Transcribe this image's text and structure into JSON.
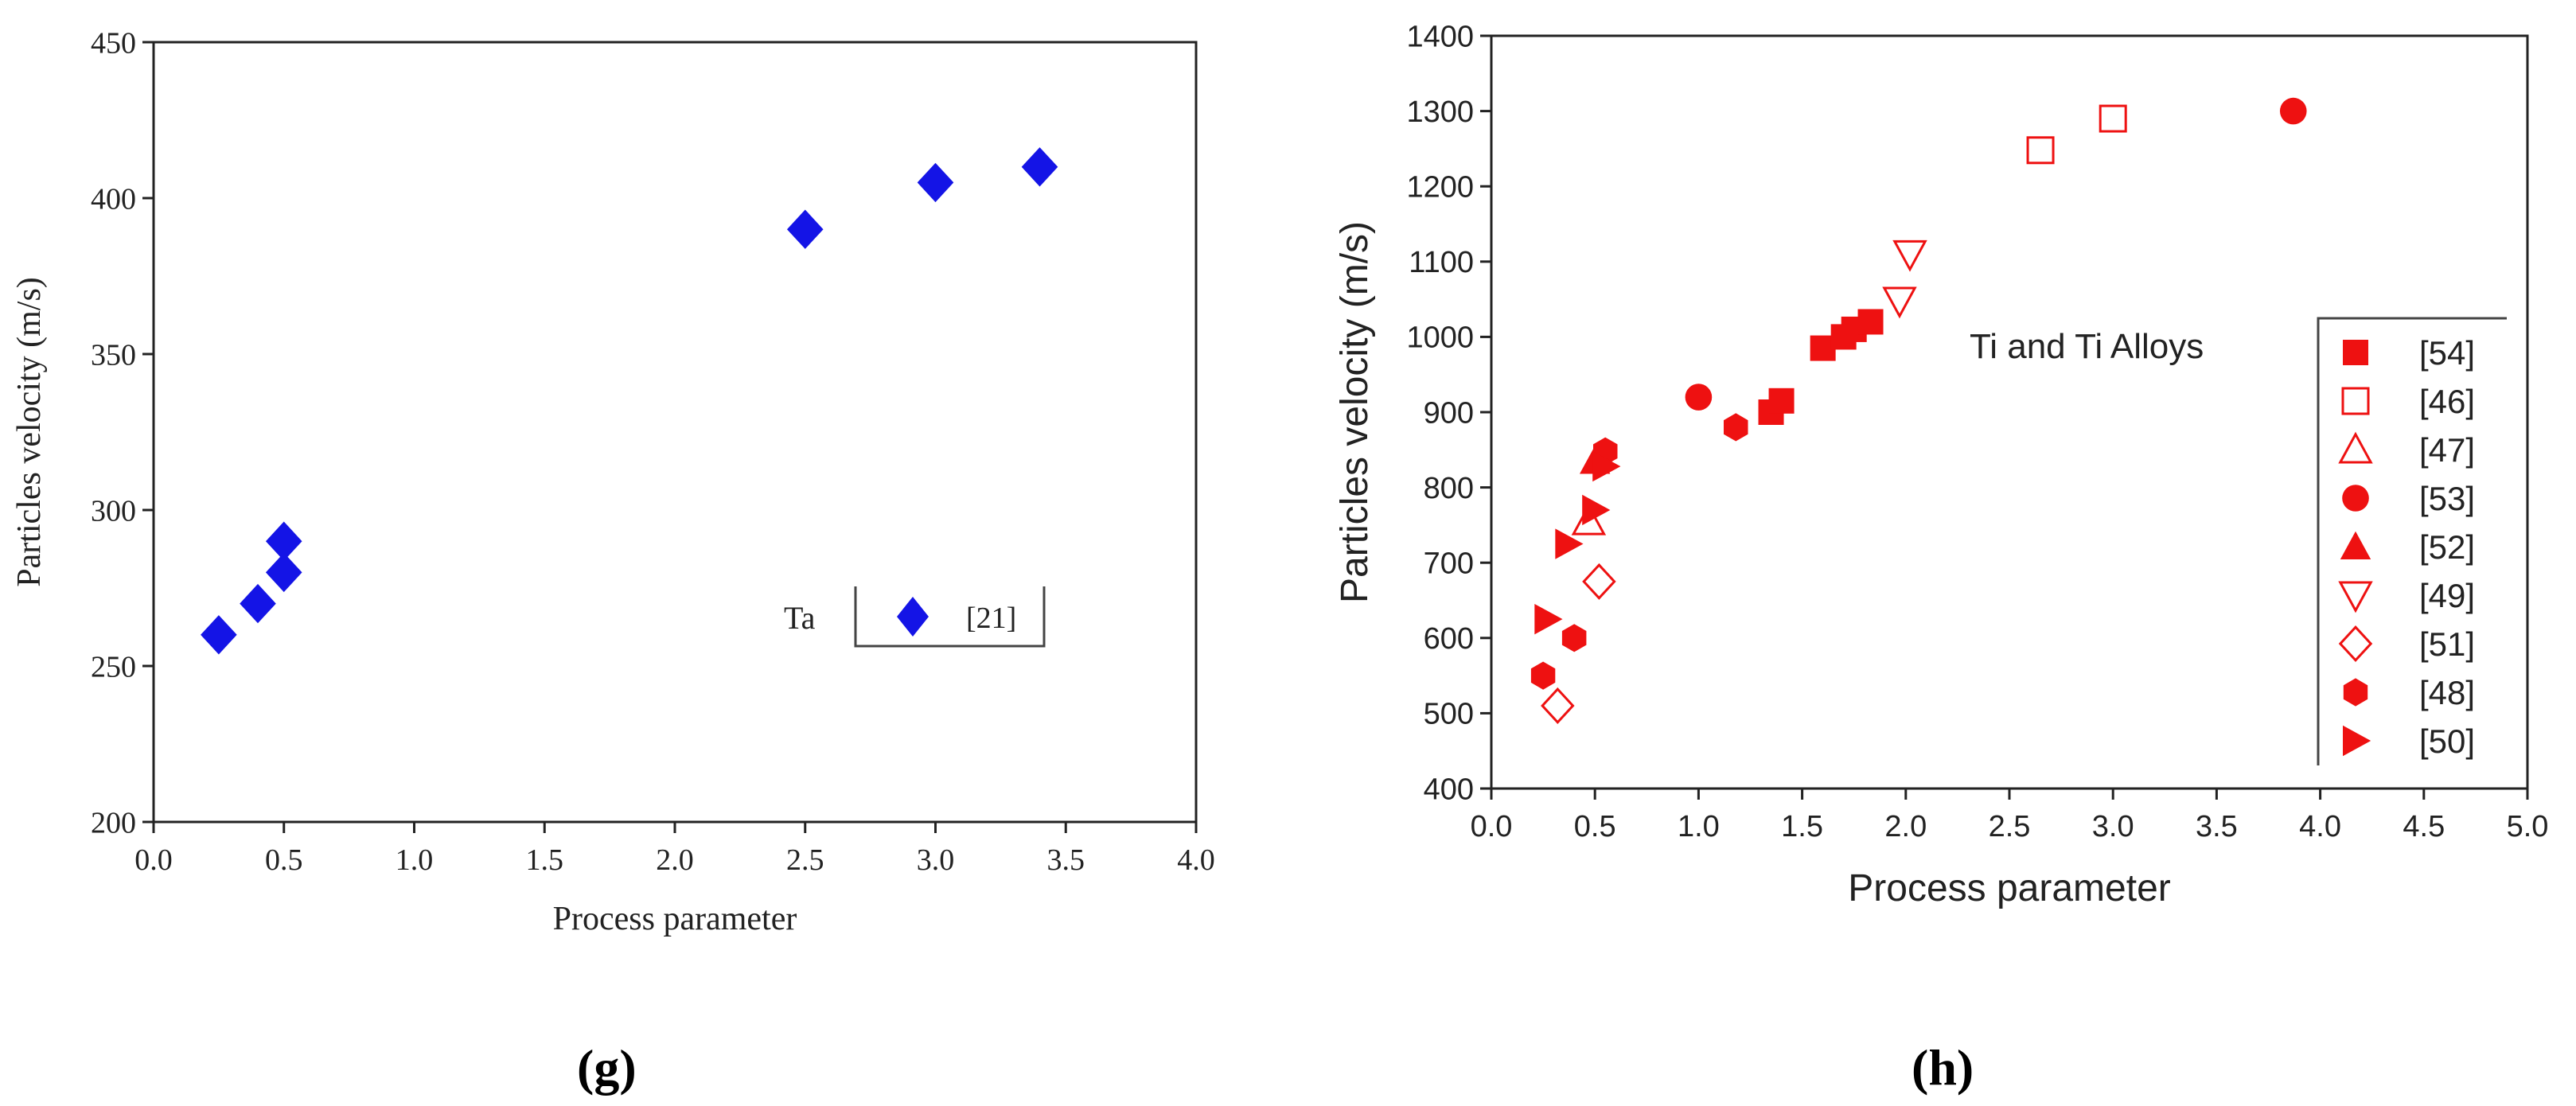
{
  "chart_data": [
    {
      "type": "scatter",
      "panel": "g",
      "title": "",
      "xlabel": "Process parameter",
      "ylabel": "Particles velocity (m/s)",
      "xlim": [
        0.0,
        4.0
      ],
      "ylim": [
        200,
        450
      ],
      "xticks": [
        "0.0",
        "0.5",
        "1.0",
        "1.5",
        "2.0",
        "2.5",
        "3.0",
        "3.5",
        "4.0"
      ],
      "yticks": [
        "200",
        "250",
        "300",
        "350",
        "400",
        "450"
      ],
      "legend_title": "Ta",
      "legend_position": "center-right",
      "series": [
        {
          "name": "[21]",
          "marker": "diamond",
          "color": "#1414e6",
          "filled": true,
          "x": [
            0.25,
            0.4,
            0.5,
            0.5,
            2.5,
            3.0,
            3.4
          ],
          "y": [
            260,
            270,
            280,
            290,
            390,
            405,
            410
          ]
        }
      ]
    },
    {
      "type": "scatter",
      "panel": "h",
      "title": "",
      "xlabel": "Process parameter",
      "ylabel": "Particles velocity (m/s)",
      "xlim": [
        0.0,
        5.0
      ],
      "ylim": [
        400,
        1400
      ],
      "xticks": [
        "0.0",
        "0.5",
        "1.0",
        "1.5",
        "2.0",
        "2.5",
        "3.0",
        "3.5",
        "4.0",
        "4.5",
        "5.0"
      ],
      "yticks": [
        "400",
        "500",
        "600",
        "700",
        "800",
        "900",
        "1000",
        "1100",
        "1200",
        "1300",
        "1400"
      ],
      "annotation": "Ti and Ti Alloys",
      "legend_position": "right",
      "series": [
        {
          "name": "[54]",
          "marker": "square",
          "filled": true,
          "color": "#ee1111",
          "x": [
            1.35,
            1.4,
            1.6,
            1.7,
            1.75,
            1.83
          ],
          "y": [
            900,
            915,
            985,
            1000,
            1010,
            1020
          ]
        },
        {
          "name": "[46]",
          "marker": "square",
          "filled": false,
          "color": "#ee1111",
          "x": [
            2.65,
            3.0
          ],
          "y": [
            1248,
            1290
          ]
        },
        {
          "name": "[47]",
          "marker": "triangle-up",
          "filled": false,
          "color": "#ee1111",
          "x": [
            0.47
          ],
          "y": [
            755
          ]
        },
        {
          "name": "[53]",
          "marker": "circle",
          "filled": true,
          "color": "#ee1111",
          "x": [
            1.0,
            3.87
          ],
          "y": [
            920,
            1300
          ]
        },
        {
          "name": "[52]",
          "marker": "triangle-up",
          "filled": true,
          "color": "#ee1111",
          "x": [
            0.5
          ],
          "y": [
            835
          ]
        },
        {
          "name": "[49]",
          "marker": "triangle-down",
          "filled": false,
          "color": "#ee1111",
          "x": [
            1.97,
            2.02
          ],
          "y": [
            1048,
            1110
          ]
        },
        {
          "name": "[51]",
          "marker": "diamond",
          "filled": false,
          "color": "#ee1111",
          "x": [
            0.32,
            0.52
          ],
          "y": [
            510,
            675
          ]
        },
        {
          "name": "[48]",
          "marker": "hexagon",
          "filled": true,
          "color": "#ee1111",
          "x": [
            0.25,
            0.4,
            0.55,
            1.18
          ],
          "y": [
            550,
            600,
            848,
            880
          ]
        },
        {
          "name": "[50]",
          "marker": "triangle-right",
          "filled": true,
          "color": "#ee1111",
          "x": [
            0.27,
            0.37,
            0.5,
            0.55
          ],
          "y": [
            625,
            725,
            770,
            828
          ]
        }
      ]
    }
  ],
  "captions": {
    "g": "(g)",
    "h": "(h)"
  }
}
